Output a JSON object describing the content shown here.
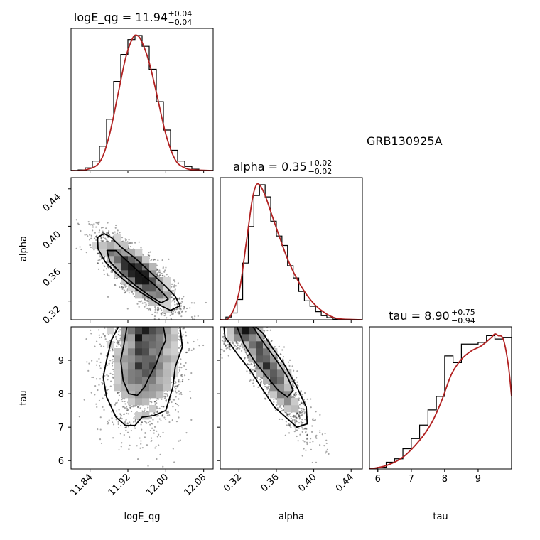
{
  "chart_data": {
    "type": "corner",
    "source_label": "GRB130925A",
    "parameters": [
      {
        "name": "logE_qg",
        "label": "logE_qg",
        "median": "11.94",
        "plus": "+0.04",
        "minus": "−0.04",
        "range": [
          11.8,
          12.1
        ],
        "ticks": [
          11.84,
          11.92,
          12.0,
          12.08
        ],
        "tick_labels": [
          "11.84",
          "11.92",
          "12.00",
          "12.08"
        ]
      },
      {
        "name": "alpha",
        "label": "alpha",
        "median": "0.35",
        "plus": "+0.02",
        "minus": "−0.02",
        "range": [
          0.3,
          0.452
        ],
        "ticks": [
          0.32,
          0.36,
          0.4,
          0.44
        ],
        "tick_labels": [
          "0.32",
          "0.36",
          "0.40",
          "0.44"
        ]
      },
      {
        "name": "tau",
        "label": "tau",
        "median": "8.90",
        "plus": "+0.75",
        "minus": "−0.94",
        "range": [
          5.75,
          10.0
        ],
        "ticks": [
          6,
          7,
          8,
          9
        ],
        "tick_labels": [
          "6",
          "7",
          "8",
          "9"
        ]
      }
    ],
    "colors": {
      "kde": "#b22222",
      "hist": "#000000",
      "contour": "#000000"
    },
    "histograms": [
      {
        "param": "logE_qg",
        "bin_edges": [
          11.8,
          11.815,
          11.83,
          11.845,
          11.86,
          11.875,
          11.89,
          11.905,
          11.92,
          11.935,
          11.95,
          11.965,
          11.98,
          11.995,
          12.01,
          12.025,
          12.04,
          12.055,
          12.07,
          12.085,
          12.1
        ],
        "counts": [
          0,
          0.005,
          0.02,
          0.07,
          0.18,
          0.38,
          0.66,
          0.86,
          0.97,
          1.0,
          0.92,
          0.75,
          0.51,
          0.3,
          0.15,
          0.07,
          0.03,
          0.01,
          0,
          0
        ]
      },
      {
        "param": "alpha",
        "bin_edges": [
          0.3,
          0.306,
          0.312,
          0.318,
          0.324,
          0.33,
          0.336,
          0.342,
          0.348,
          0.354,
          0.36,
          0.366,
          0.372,
          0.378,
          0.384,
          0.39,
          0.396,
          0.402,
          0.408,
          0.414,
          0.42,
          0.426,
          0.432,
          0.438,
          0.444,
          0.452
        ],
        "counts": [
          0,
          0.02,
          0.05,
          0.15,
          0.42,
          0.69,
          0.92,
          1.0,
          0.91,
          0.73,
          0.62,
          0.55,
          0.4,
          0.31,
          0.21,
          0.14,
          0.1,
          0.06,
          0.03,
          0.015,
          0.005,
          0,
          0,
          0,
          0
        ]
      },
      {
        "param": "tau",
        "bin_edges": [
          5.75,
          6.0,
          6.25,
          6.5,
          6.75,
          7.0,
          7.25,
          7.5,
          7.75,
          8.0,
          8.25,
          8.5,
          8.75,
          9.0,
          9.25,
          9.5,
          9.75,
          10.0
        ],
        "counts": [
          0.005,
          0.01,
          0.04,
          0.06,
          0.12,
          0.18,
          0.26,
          0.35,
          0.43,
          0.67,
          0.63,
          0.74,
          0.74,
          0.75,
          0.79,
          0.77,
          0.78
        ]
      }
    ],
    "kde_curves": [
      {
        "param": "logE_qg",
        "x": [
          11.8,
          11.83,
          11.86,
          11.88,
          11.9,
          11.915,
          11.93,
          11.94,
          11.95,
          11.965,
          11.98,
          12.0,
          12.02,
          12.04,
          12.06,
          12.1
        ],
        "y": [
          0,
          0.005,
          0.06,
          0.25,
          0.58,
          0.83,
          0.98,
          1.0,
          0.95,
          0.8,
          0.58,
          0.27,
          0.08,
          0.02,
          0.005,
          0
        ]
      },
      {
        "param": "alpha",
        "x": [
          0.3,
          0.31,
          0.32,
          0.328,
          0.334,
          0.338,
          0.342,
          0.348,
          0.356,
          0.364,
          0.372,
          0.38,
          0.39,
          0.4,
          0.41,
          0.42,
          0.43,
          0.452
        ],
        "y": [
          0,
          0.02,
          0.2,
          0.58,
          0.88,
          0.99,
          1.0,
          0.92,
          0.76,
          0.6,
          0.45,
          0.33,
          0.21,
          0.12,
          0.06,
          0.02,
          0.005,
          0
        ]
      },
      {
        "param": "tau",
        "x": [
          5.75,
          6.25,
          6.75,
          7.25,
          7.6,
          7.9,
          8.2,
          8.5,
          8.8,
          9.1,
          9.4,
          9.5,
          9.6,
          9.75,
          9.9,
          10.0
        ],
        "y": [
          0,
          0.02,
          0.07,
          0.17,
          0.27,
          0.4,
          0.56,
          0.65,
          0.7,
          0.73,
          0.78,
          0.8,
          0.79,
          0.77,
          0.62,
          0.43
        ]
      }
    ],
    "scatter_panels": [
      {
        "x": "logE_qg",
        "y": "alpha",
        "mean": [
          11.94,
          0.35
        ],
        "sd": [
          0.04,
          0.02
        ],
        "rho": -0.8,
        "n": 2600
      },
      {
        "x": "logE_qg",
        "y": "tau",
        "mean": [
          11.955,
          8.9
        ],
        "sd": [
          0.038,
          0.9
        ],
        "rho": 0.08,
        "n": 2600
      },
      {
        "x": "alpha",
        "y": "tau",
        "mean": [
          0.35,
          8.9
        ],
        "sd": [
          0.02,
          0.9
        ],
        "rho": -0.9,
        "n": 2600
      }
    ],
    "contours": [
      {
        "x": "logE_qg",
        "y": "alpha",
        "levels": [
          [
            [
              11.856,
              0.388
            ],
            [
              11.87,
              0.392
            ],
            [
              11.885,
              0.388
            ],
            [
              11.905,
              0.378
            ],
            [
              11.935,
              0.366
            ],
            [
              11.965,
              0.352
            ],
            [
              11.995,
              0.338
            ],
            [
              12.02,
              0.325
            ],
            [
              12.03,
              0.315
            ],
            [
              12.01,
              0.31
            ],
            [
              11.99,
              0.315
            ],
            [
              11.97,
              0.322
            ],
            [
              11.945,
              0.33
            ],
            [
              11.92,
              0.339
            ],
            [
              11.895,
              0.35
            ],
            [
              11.872,
              0.362
            ],
            [
              11.857,
              0.376
            ]
          ],
          [
            [
              11.876,
              0.374
            ],
            [
              11.895,
              0.374
            ],
            [
              11.92,
              0.362
            ],
            [
              11.95,
              0.348
            ],
            [
              11.975,
              0.338
            ],
            [
              11.995,
              0.328
            ],
            [
              12.005,
              0.322
            ],
            [
              11.99,
              0.318
            ],
            [
              11.965,
              0.326
            ],
            [
              11.935,
              0.337
            ],
            [
              11.905,
              0.35
            ],
            [
              11.882,
              0.362
            ]
          ]
        ]
      },
      {
        "x": "logE_qg",
        "y": "tau",
        "levels": [
          [
            [
              11.9,
              10.0
            ],
            [
              11.885,
              9.6
            ],
            [
              11.875,
              9.0
            ],
            [
              11.868,
              8.5
            ],
            [
              11.875,
              7.9
            ],
            [
              11.895,
              7.3
            ],
            [
              11.915,
              7.05
            ],
            [
              11.935,
              7.05
            ],
            [
              11.95,
              7.3
            ],
            [
              11.975,
              7.35
            ],
            [
              12.0,
              7.5
            ],
            [
              12.015,
              8.2
            ],
            [
              12.02,
              8.8
            ],
            [
              12.035,
              9.4
            ],
            [
              12.03,
              10.0
            ]
          ],
          [
            [
              11.918,
              10.0
            ],
            [
              11.912,
              9.5
            ],
            [
              11.905,
              9.0
            ],
            [
              11.91,
              8.4
            ],
            [
              11.922,
              8.0
            ],
            [
              11.94,
              7.95
            ],
            [
              11.955,
              8.2
            ],
            [
              11.965,
              8.5
            ],
            [
              11.98,
              8.9
            ],
            [
              11.99,
              9.3
            ],
            [
              12.0,
              9.6
            ],
            [
              11.995,
              10.0
            ]
          ]
        ]
      },
      {
        "x": "alpha",
        "y": "tau",
        "levels": [
          [
            [
              0.304,
              10.0
            ],
            [
              0.305,
              9.7
            ],
            [
              0.318,
              9.2
            ],
            [
              0.332,
              8.7
            ],
            [
              0.346,
              8.1
            ],
            [
              0.358,
              7.6
            ],
            [
              0.37,
              7.3
            ],
            [
              0.382,
              7.0
            ],
            [
              0.393,
              7.1
            ],
            [
              0.392,
              7.6
            ],
            [
              0.382,
              8.2
            ],
            [
              0.368,
              8.9
            ],
            [
              0.355,
              9.4
            ],
            [
              0.346,
              9.8
            ],
            [
              0.338,
              10.0
            ]
          ],
          [
            [
              0.318,
              10.0
            ],
            [
              0.325,
              9.5
            ],
            [
              0.336,
              9.0
            ],
            [
              0.35,
              8.5
            ],
            [
              0.362,
              8.1
            ],
            [
              0.372,
              7.9
            ],
            [
              0.378,
              8.1
            ],
            [
              0.372,
              8.5
            ],
            [
              0.36,
              9.0
            ],
            [
              0.347,
              9.5
            ],
            [
              0.335,
              10.0
            ]
          ]
        ]
      }
    ]
  }
}
